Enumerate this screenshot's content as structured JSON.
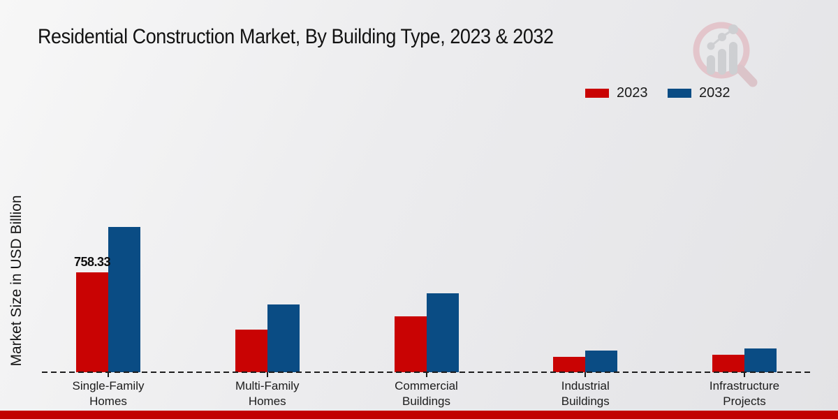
{
  "title": "Residential Construction Market, By Building Type, 2023 & 2032",
  "ylabel": "Market Size in USD Billion",
  "legend": [
    {
      "label": "2023",
      "color": "#c90303"
    },
    {
      "label": "2032",
      "color": "#0a4c84"
    }
  ],
  "colors": {
    "bar_2023": "#c90303",
    "bar_2032": "#0a4c84",
    "footer_band": "#c10101",
    "background_light": "#f7f7f7",
    "background_dark": "#e3e3e6",
    "axis": "#1c1c1c"
  },
  "icons": {
    "logo": "magnifier-bar-chart-watermark"
  },
  "chart_data": {
    "type": "bar",
    "title": "Residential Construction Market, By Building Type, 2023 & 2032",
    "xlabel": "",
    "ylabel": "Market Size in USD Billion",
    "categories": [
      "Single-Family Homes",
      "Multi-Family Homes",
      "Commercial Buildings",
      "Industrial Buildings",
      "Infrastructure Projects"
    ],
    "series": [
      {
        "name": "2023",
        "color": "#c90303",
        "values": [
          758.33,
          323,
          424,
          117,
          133
        ]
      },
      {
        "name": "2032",
        "color": "#0a4c84",
        "values": [
          1103,
          514,
          599,
          164,
          180
        ]
      }
    ],
    "annotations": [
      {
        "series_index": 0,
        "category_index": 0,
        "text": "758.33"
      }
    ],
    "ylim": [
      0,
      1150
    ],
    "grid": false,
    "y_axis_ticks_visible": false,
    "legend_position": "upper right",
    "baseline_style": "dashed"
  }
}
